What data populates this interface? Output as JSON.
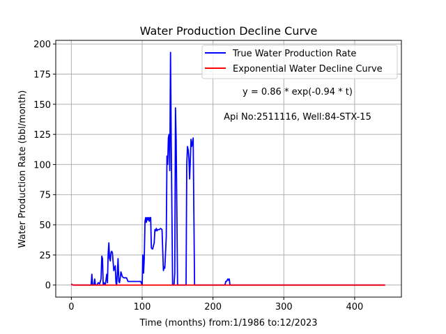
{
  "chart_data": {
    "type": "line",
    "title": "Water Production Decline Curve",
    "xlabel": "Time (months) from:1/1986 to:12/2023",
    "ylabel": "Water Production Rate (bbl/month)",
    "xlim": [
      -22,
      466
    ],
    "ylim": [
      -10,
      203
    ],
    "xticks": [
      0,
      100,
      200,
      300,
      400
    ],
    "yticks": [
      0,
      25,
      50,
      75,
      100,
      125,
      150,
      175,
      200
    ],
    "grid": true,
    "legend_position": "top-right",
    "annotations": [
      "y = 0.86 * exp(-0.94 * t)",
      "Api No:2511116, Well:84-STX-15"
    ],
    "series": [
      {
        "name": "True Water Production Rate",
        "color": "#0000ff",
        "x": [
          0,
          2,
          4,
          28,
          29,
          30,
          32,
          33,
          34,
          36,
          38,
          40,
          42,
          43,
          44,
          45,
          46,
          48,
          50,
          51,
          52,
          53,
          54,
          55,
          56,
          57,
          58,
          60,
          62,
          63,
          64,
          65,
          66,
          67,
          68,
          69,
          70,
          72,
          74,
          76,
          78,
          80,
          82,
          84,
          86,
          88,
          90,
          92,
          94,
          96,
          98,
          100,
          101,
          102,
          103,
          104,
          105,
          106,
          107,
          108,
          109,
          110,
          111,
          112,
          113,
          114,
          115,
          116,
          117,
          118,
          119,
          120,
          121,
          122,
          124,
          126,
          128,
          130,
          131,
          132,
          134,
          135,
          136,
          137,
          138,
          139,
          140,
          141,
          142,
          143,
          144,
          145,
          146,
          147,
          148,
          149,
          150,
          151,
          152,
          153,
          154,
          155,
          156,
          160,
          161,
          162,
          163,
          164,
          165,
          166,
          167,
          168,
          169,
          170,
          171,
          172,
          173,
          174,
          175,
          176,
          180,
          200,
          214,
          215,
          216,
          217,
          218,
          219,
          220,
          221,
          222,
          223,
          224,
          225,
          230,
          260,
          300,
          350,
          400,
          443
        ],
        "y": [
          1,
          0,
          0,
          0,
          9,
          0,
          0,
          5,
          0,
          0,
          2,
          1,
          5,
          24,
          22,
          0,
          2,
          0,
          9,
          2,
          26,
          35,
          22,
          20,
          27,
          28,
          27,
          12,
          16,
          2,
          0,
          10,
          22,
          3,
          2,
          6,
          11,
          7,
          6,
          6,
          6,
          3,
          3,
          3,
          3,
          3,
          3,
          3,
          3,
          3,
          3,
          0,
          25,
          10,
          22,
          53,
          56,
          52,
          56,
          54,
          56,
          53,
          56,
          56,
          31,
          30,
          30,
          33,
          35,
          46,
          45,
          47,
          45,
          46,
          46,
          47,
          46,
          12,
          15,
          14,
          40,
          107,
          100,
          122,
          125,
          95,
          193,
          120,
          60,
          0,
          0,
          0,
          10,
          147,
          120,
          60,
          0,
          0,
          0,
          0,
          0,
          0,
          0,
          0,
          0,
          0,
          100,
          115,
          112,
          105,
          88,
          103,
          121,
          115,
          118,
          122,
          60,
          0,
          0,
          0,
          0,
          0,
          0,
          0,
          0,
          0,
          3,
          3,
          4,
          5,
          4,
          5,
          0,
          0,
          0,
          0,
          0,
          0,
          0,
          0
        ]
      },
      {
        "name": "Exponential Water Decline Curve",
        "color": "#ff0000",
        "x": [
          0,
          1,
          2,
          3,
          4,
          5,
          6,
          8,
          10,
          20,
          50,
          100,
          200,
          300,
          400,
          443
        ],
        "y": [
          0.86,
          0.34,
          0.13,
          0.05,
          0.02,
          0.01,
          0,
          0,
          0,
          0,
          0,
          0,
          0,
          0,
          0,
          0
        ]
      }
    ]
  }
}
